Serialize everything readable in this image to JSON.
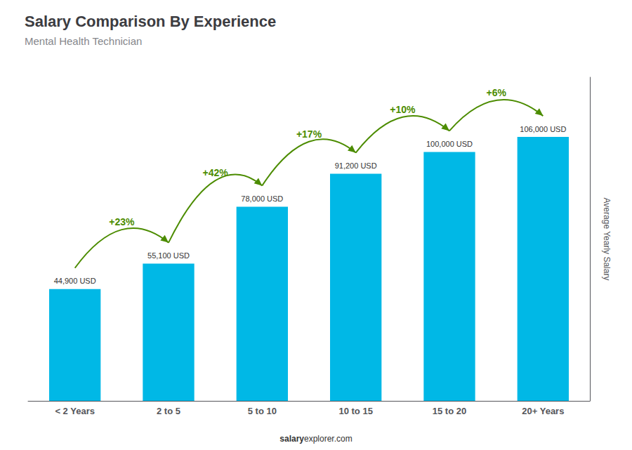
{
  "chart_data": {
    "type": "bar",
    "title": "Salary Comparison By Experience",
    "subtitle": "Mental Health Technician",
    "categories": [
      "< 2 Years",
      "2 to 5",
      "5 to 10",
      "10 to 15",
      "15 to 20",
      "20+ Years"
    ],
    "values": [
      44900,
      55100,
      78000,
      91200,
      100000,
      106000
    ],
    "value_labels": [
      "44,900 USD",
      "55,100 USD",
      "78,000 USD",
      "91,200 USD",
      "100,000 USD",
      "106,000 USD"
    ],
    "data_labels": true,
    "color": "#00b8e6",
    "ylabel": "Average Yearly Salary",
    "ylim": [
      0,
      130000
    ],
    "grid": false,
    "tick_labels": "x",
    "annotations": [
      "+23%",
      "+42%",
      "+17%",
      "+10%",
      "+6%"
    ],
    "footer_bold": "salary",
    "footer_regular": "explorer.com"
  }
}
